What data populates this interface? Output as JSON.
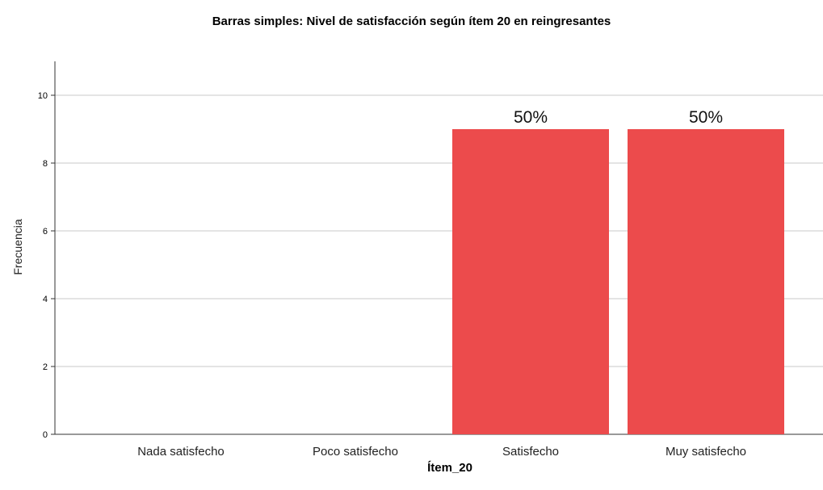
{
  "chart_data": {
    "type": "bar",
    "title": "Barras simples: Nivel de satisfacción según ítem 20 en reingresantes",
    "xlabel": "Ítem_20",
    "ylabel": "Frecuencia",
    "categories": [
      "Nada satisfecho",
      "Poco satisfecho",
      "Satisfecho",
      "Muy satisfecho"
    ],
    "values": [
      0,
      0,
      9,
      9
    ],
    "data_labels": [
      "",
      "",
      "50%",
      "50%"
    ],
    "ylim": [
      0,
      11
    ],
    "yticks": [
      0,
      2,
      4,
      6,
      8,
      10
    ],
    "ytick_labels": [
      "0",
      "2",
      "4",
      "6",
      "8",
      "10"
    ],
    "grid": true,
    "bar_color": "#ec4b4c",
    "grid_color": "#c8c8c8"
  }
}
